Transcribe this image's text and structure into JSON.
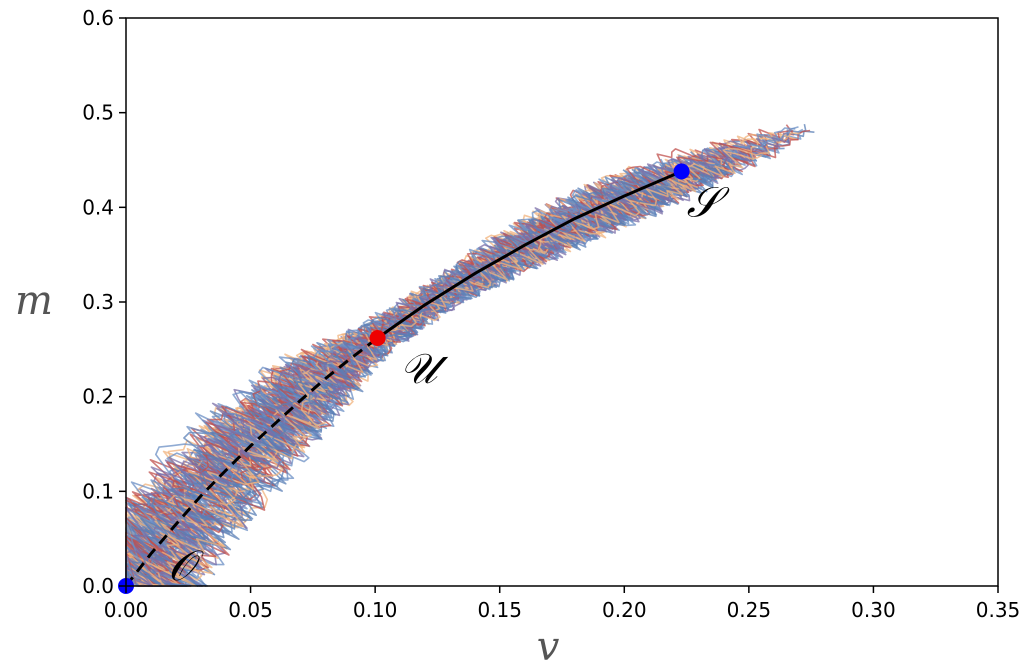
{
  "chart_data": {
    "type": "line",
    "xlabel": "v",
    "ylabel": "m",
    "xlim": [
      0.0,
      0.35
    ],
    "ylim": [
      0.0,
      0.6
    ],
    "x_ticks": [
      "0.00",
      "0.05",
      "0.10",
      "0.15",
      "0.20",
      "0.25",
      "0.30",
      "0.35"
    ],
    "y_ticks": [
      "0.0",
      "0.1",
      "0.2",
      "0.3",
      "0.4",
      "0.5",
      "0.6"
    ],
    "grid": false,
    "ensemble_colors": [
      "#c0504d",
      "#f0b37e",
      "#6b8fc4",
      "#7b6fa8",
      "#5a7fb5"
    ],
    "ensemble_band": {
      "centerline": [
        [
          0.0,
          0.0
        ],
        [
          0.02,
          0.07
        ],
        [
          0.05,
          0.155
        ],
        [
          0.075,
          0.215
        ],
        [
          0.1,
          0.262
        ],
        [
          0.125,
          0.305
        ],
        [
          0.15,
          0.345
        ],
        [
          0.175,
          0.38
        ],
        [
          0.2,
          0.41
        ],
        [
          0.225,
          0.438
        ],
        [
          0.25,
          0.462
        ],
        [
          0.275,
          0.485
        ]
      ],
      "half_width": [
        0.045,
        0.04,
        0.035,
        0.028,
        0.015,
        0.013,
        0.018,
        0.022,
        0.022,
        0.02,
        0.015,
        0.006
      ]
    },
    "series": [
      {
        "style": "dashed",
        "color": "#000000",
        "x": [
          0.0,
          0.01,
          0.02,
          0.03,
          0.04,
          0.05,
          0.06,
          0.07,
          0.08,
          0.09,
          0.101
        ],
        "y": [
          0.0,
          0.034,
          0.065,
          0.095,
          0.122,
          0.148,
          0.172,
          0.196,
          0.219,
          0.24,
          0.262
        ]
      },
      {
        "style": "solid",
        "color": "#000000",
        "x": [
          0.101,
          0.12,
          0.14,
          0.16,
          0.18,
          0.2,
          0.223
        ],
        "y": [
          0.262,
          0.297,
          0.33,
          0.36,
          0.388,
          0.412,
          0.438
        ]
      }
    ],
    "points": [
      {
        "label": "𝒮",
        "x": 0.223,
        "y": 0.438,
        "color": "#0000ff"
      },
      {
        "label": "𝒰",
        "x": 0.101,
        "y": 0.262,
        "color": "#ee0000"
      },
      {
        "label": "𝒪",
        "x": 0.0,
        "y": 0.0,
        "color": "#0000ff"
      }
    ]
  }
}
